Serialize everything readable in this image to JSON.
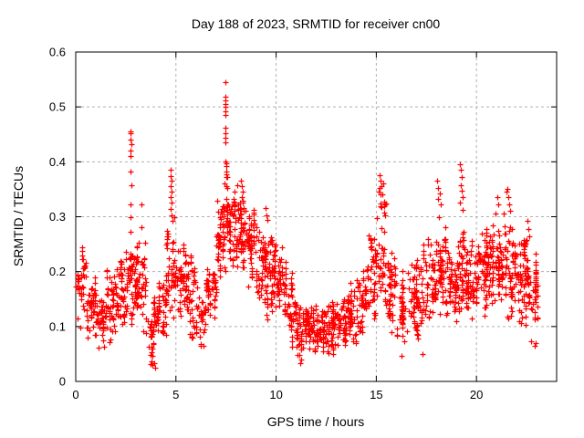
{
  "window": {
    "background": "#ffffff"
  },
  "chart_data": {
    "type": "scatter",
    "title": "Day 188 of 2023, SRMTID for receiver cn00",
    "xlabel": "GPS time / hours",
    "ylabel": "SRMTID / TECUs",
    "xlim": [
      0,
      24
    ],
    "ylim": [
      0,
      0.6
    ],
    "xtick_values": [
      0,
      5,
      10,
      15,
      20
    ],
    "xtick_labels": [
      "0",
      "5",
      "10",
      "15",
      "20"
    ],
    "ytick_values": [
      0,
      0.1,
      0.2,
      0.3,
      0.4,
      0.5,
      0.6
    ],
    "ytick_labels": [
      "0",
      "0.1",
      "0.2",
      "0.3",
      "0.4",
      "0.5",
      "0.6"
    ],
    "grid": "dashed",
    "legend": "none",
    "marker": "plus",
    "colors": {
      "points": "#ff0000",
      "grid": "#b0b0b0",
      "border": "#000000",
      "text": "#000000"
    },
    "seed": 7,
    "series_name": "SRMTID",
    "bins": [
      [
        0.0,
        0.5,
        0.09,
        0.25,
        40
      ],
      [
        0.5,
        1.0,
        0.07,
        0.19,
        45
      ],
      [
        1.0,
        1.5,
        0.05,
        0.17,
        45
      ],
      [
        1.5,
        2.0,
        0.07,
        0.21,
        45
      ],
      [
        2.0,
        2.5,
        0.09,
        0.22,
        50
      ],
      [
        2.5,
        3.0,
        0.1,
        0.26,
        55
      ],
      [
        3.0,
        3.5,
        0.08,
        0.26,
        50
      ],
      [
        3.5,
        4.0,
        0.03,
        0.17,
        40
      ],
      [
        4.0,
        4.5,
        0.06,
        0.19,
        40
      ],
      [
        4.5,
        5.0,
        0.1,
        0.28,
        50
      ],
      [
        5.0,
        5.5,
        0.12,
        0.26,
        50
      ],
      [
        5.5,
        6.0,
        0.08,
        0.23,
        45
      ],
      [
        6.0,
        6.5,
        0.05,
        0.2,
        40
      ],
      [
        6.5,
        7.0,
        0.1,
        0.24,
        40
      ],
      [
        7.0,
        7.5,
        0.16,
        0.34,
        55
      ],
      [
        7.5,
        8.0,
        0.2,
        0.4,
        60
      ],
      [
        8.0,
        8.5,
        0.18,
        0.37,
        60
      ],
      [
        8.5,
        9.0,
        0.15,
        0.33,
        55
      ],
      [
        9.0,
        9.5,
        0.13,
        0.3,
        55
      ],
      [
        9.5,
        10.0,
        0.11,
        0.28,
        55
      ],
      [
        10.0,
        10.5,
        0.11,
        0.26,
        50
      ],
      [
        10.5,
        11.0,
        0.06,
        0.2,
        45
      ],
      [
        11.0,
        11.5,
        0.03,
        0.14,
        45
      ],
      [
        11.5,
        12.0,
        0.05,
        0.15,
        50
      ],
      [
        12.0,
        12.5,
        0.05,
        0.14,
        50
      ],
      [
        12.5,
        13.0,
        0.05,
        0.15,
        50
      ],
      [
        13.0,
        13.5,
        0.06,
        0.16,
        50
      ],
      [
        13.5,
        14.0,
        0.07,
        0.18,
        50
      ],
      [
        14.0,
        14.5,
        0.08,
        0.22,
        45
      ],
      [
        14.5,
        15.0,
        0.1,
        0.3,
        45
      ],
      [
        15.0,
        15.5,
        0.14,
        0.34,
        45
      ],
      [
        15.5,
        16.0,
        0.08,
        0.25,
        45
      ],
      [
        16.0,
        16.5,
        0.05,
        0.22,
        40
      ],
      [
        16.5,
        17.0,
        0.08,
        0.26,
        45
      ],
      [
        17.0,
        17.5,
        0.05,
        0.28,
        45
      ],
      [
        17.5,
        18.0,
        0.06,
        0.3,
        45
      ],
      [
        18.0,
        18.5,
        0.1,
        0.31,
        50
      ],
      [
        18.5,
        19.0,
        0.1,
        0.26,
        50
      ],
      [
        19.0,
        19.5,
        0.12,
        0.3,
        50
      ],
      [
        19.5,
        20.0,
        0.1,
        0.28,
        50
      ],
      [
        20.0,
        20.5,
        0.12,
        0.28,
        55
      ],
      [
        20.5,
        21.0,
        0.12,
        0.29,
        55
      ],
      [
        21.0,
        21.5,
        0.13,
        0.3,
        55
      ],
      [
        21.5,
        22.0,
        0.1,
        0.3,
        55
      ],
      [
        22.0,
        22.5,
        0.09,
        0.27,
        55
      ],
      [
        22.5,
        23.1,
        0.05,
        0.26,
        55
      ]
    ],
    "extras": [
      [
        2.73,
        0.455
      ],
      [
        2.75,
        0.452
      ],
      [
        2.74,
        0.44
      ],
      [
        2.76,
        0.432
      ],
      [
        2.73,
        0.421
      ],
      [
        2.75,
        0.41
      ],
      [
        2.74,
        0.383
      ],
      [
        2.76,
        0.358
      ],
      [
        2.73,
        0.323
      ],
      [
        2.75,
        0.3
      ],
      [
        2.74,
        0.273
      ],
      [
        3.28,
        0.322
      ],
      [
        3.3,
        0.281
      ],
      [
        3.12,
        0.252
      ],
      [
        4.72,
        0.386
      ],
      [
        4.75,
        0.374
      ],
      [
        4.78,
        0.366
      ],
      [
        4.73,
        0.356
      ],
      [
        4.76,
        0.346
      ],
      [
        4.74,
        0.336
      ],
      [
        4.77,
        0.325
      ],
      [
        4.72,
        0.314
      ],
      [
        4.78,
        0.302
      ],
      [
        4.85,
        0.292
      ],
      [
        4.9,
        0.3
      ],
      [
        4.88,
        0.255
      ],
      [
        7.47,
        0.545
      ],
      [
        7.46,
        0.518
      ],
      [
        7.48,
        0.512
      ],
      [
        7.45,
        0.506
      ],
      [
        7.47,
        0.5
      ],
      [
        7.49,
        0.492
      ],
      [
        7.46,
        0.486
      ],
      [
        7.45,
        0.462
      ],
      [
        7.48,
        0.452
      ],
      [
        7.47,
        0.443
      ],
      [
        7.46,
        0.435
      ],
      [
        7.45,
        0.401
      ],
      [
        7.5,
        0.392
      ],
      [
        7.52,
        0.382
      ],
      [
        7.55,
        0.372
      ],
      [
        7.42,
        0.36
      ],
      [
        7.58,
        0.352
      ],
      [
        8.25,
        0.366
      ],
      [
        8.3,
        0.356
      ],
      [
        8.35,
        0.346
      ],
      [
        8.28,
        0.336
      ],
      [
        8.32,
        0.326
      ],
      [
        8.36,
        0.316
      ],
      [
        8.22,
        0.306
      ],
      [
        9.45,
        0.315
      ],
      [
        9.5,
        0.303
      ],
      [
        9.55,
        0.295
      ],
      [
        15.15,
        0.376
      ],
      [
        15.2,
        0.366
      ],
      [
        15.25,
        0.356
      ],
      [
        15.1,
        0.346
      ],
      [
        15.3,
        0.34
      ],
      [
        15.18,
        0.352
      ],
      [
        15.35,
        0.36
      ],
      [
        18.05,
        0.365
      ],
      [
        18.1,
        0.352
      ],
      [
        18.15,
        0.342
      ],
      [
        18.08,
        0.332
      ],
      [
        18.2,
        0.322
      ],
      [
        19.18,
        0.396
      ],
      [
        19.22,
        0.385
      ],
      [
        19.27,
        0.372
      ],
      [
        19.2,
        0.358
      ],
      [
        19.25,
        0.347
      ],
      [
        19.3,
        0.336
      ],
      [
        19.15,
        0.325
      ],
      [
        19.32,
        0.312
      ],
      [
        20.95,
        0.305
      ],
      [
        21.05,
        0.336
      ],
      [
        21.1,
        0.322
      ],
      [
        21.35,
        0.305
      ],
      [
        21.5,
        0.345
      ],
      [
        21.55,
        0.35
      ],
      [
        21.6,
        0.336
      ],
      [
        21.65,
        0.322
      ],
      [
        21.7,
        0.31
      ],
      [
        22.55,
        0.292
      ],
      [
        22.6,
        0.278
      ],
      [
        22.62,
        0.265
      ],
      [
        3.9,
        0.034
      ],
      [
        3.95,
        0.025
      ],
      [
        11.2,
        0.033
      ],
      [
        11.25,
        0.04
      ],
      [
        16.25,
        0.046
      ],
      [
        17.3,
        0.05
      ],
      [
        22.9,
        0.064
      ],
      [
        22.95,
        0.07
      ]
    ]
  }
}
